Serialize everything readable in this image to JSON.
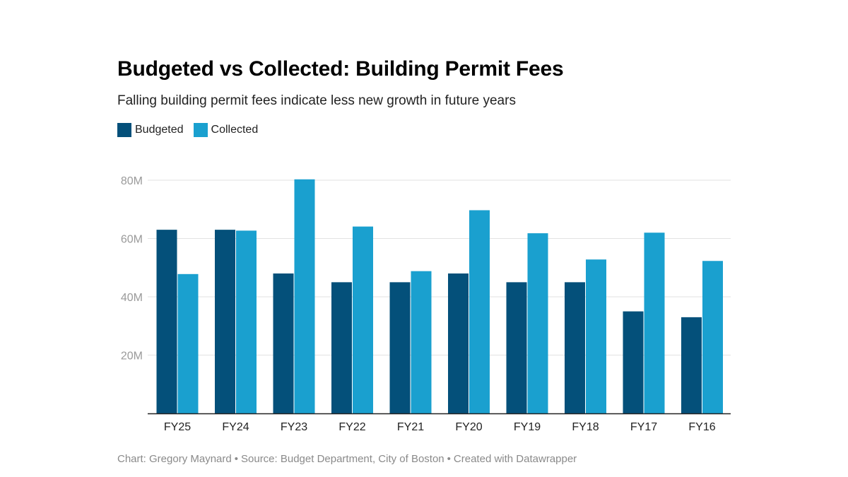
{
  "chart_data": {
    "type": "bar",
    "title": "Budgeted vs Collected: Building Permit Fees",
    "subtitle": "Falling building permit fees indicate less new growth in future years",
    "categories": [
      "FY25",
      "FY24",
      "FY23",
      "FY22",
      "FY21",
      "FY20",
      "FY19",
      "FY18",
      "FY17",
      "FY16"
    ],
    "series": [
      {
        "name": "Budgeted",
        "color": "#04507a",
        "values": [
          63,
          63,
          48,
          45,
          45,
          48,
          45,
          45,
          35,
          33
        ]
      },
      {
        "name": "Collected",
        "color": "#1aa0cf",
        "values": [
          47.8,
          62.7,
          80.3,
          64.1,
          48.8,
          69.7,
          61.8,
          52.8,
          62.0,
          52.3
        ]
      }
    ],
    "y_ticks": [
      {
        "value": 20,
        "label": "20M"
      },
      {
        "value": 40,
        "label": "40M"
      },
      {
        "value": 60,
        "label": "60M"
      },
      {
        "value": 80,
        "label": "80M"
      }
    ],
    "ylim": [
      0,
      80
    ],
    "grid": true,
    "legend_position": "top-left"
  },
  "footer": {
    "chart_credit": "Chart: Gregory Maynard",
    "source": "Source: Budget Department, City of Boston",
    "created_with": "Created with Datawrapper",
    "separator": "•"
  }
}
